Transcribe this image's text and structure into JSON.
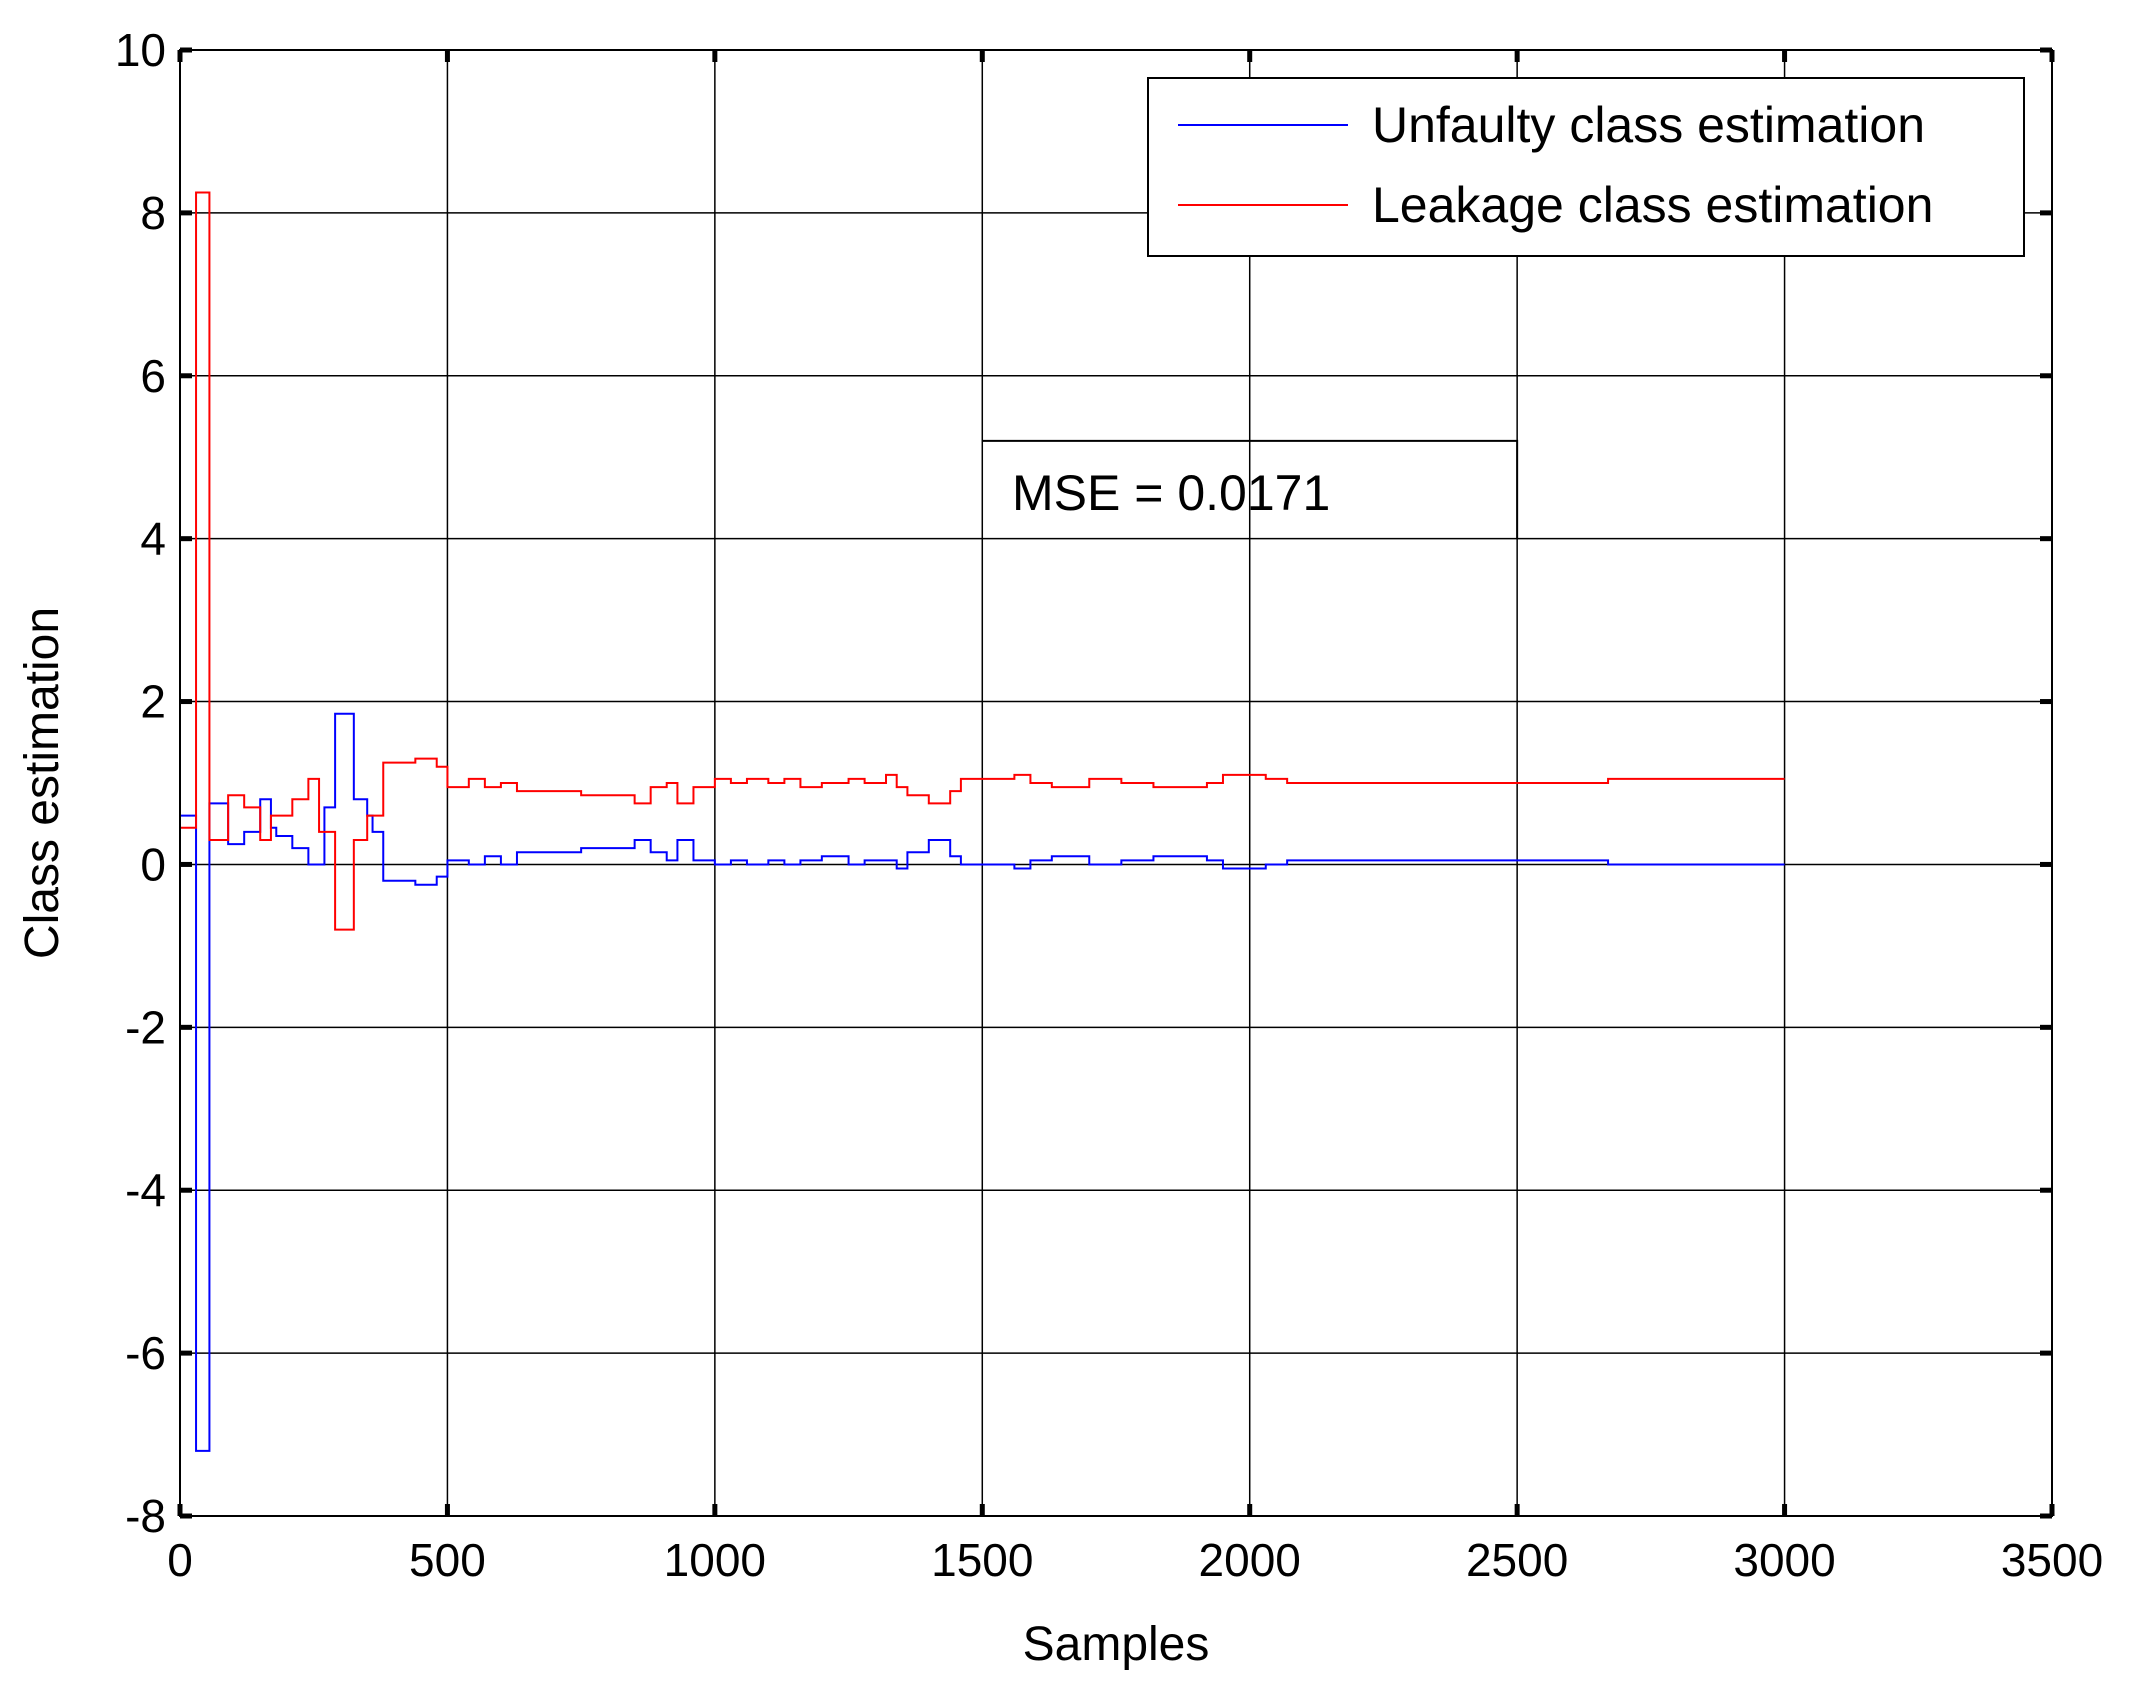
{
  "chart_data": {
    "type": "line",
    "xlabel": "Samples",
    "ylabel": "Class estimation",
    "xlim": [
      0,
      3500
    ],
    "ylim": [
      -8,
      10
    ],
    "xticks": [
      0,
      500,
      1000,
      1500,
      2000,
      2500,
      3000,
      3500
    ],
    "yticks": [
      -8,
      -6,
      -4,
      -2,
      0,
      2,
      4,
      6,
      8,
      10
    ],
    "grid": true,
    "legend_position": "top-right",
    "annotation": "MSE = 0.0171",
    "series": [
      {
        "name": "Unfaulty class estimation",
        "color": "#0000ff",
        "step": true,
        "points": [
          [
            0,
            0.6
          ],
          [
            30,
            0.6
          ],
          [
            30,
            -7.2
          ],
          [
            55,
            -7.2
          ],
          [
            55,
            0.75
          ],
          [
            90,
            0.75
          ],
          [
            90,
            0.25
          ],
          [
            120,
            0.25
          ],
          [
            120,
            0.4
          ],
          [
            150,
            0.4
          ],
          [
            150,
            0.8
          ],
          [
            170,
            0.8
          ],
          [
            170,
            0.45
          ],
          [
            180,
            0.45
          ],
          [
            180,
            0.35
          ],
          [
            210,
            0.35
          ],
          [
            210,
            0.2
          ],
          [
            240,
            0.2
          ],
          [
            240,
            0.0
          ],
          [
            270,
            0.0
          ],
          [
            270,
            0.7
          ],
          [
            290,
            0.7
          ],
          [
            290,
            1.85
          ],
          [
            325,
            1.85
          ],
          [
            325,
            0.8
          ],
          [
            350,
            0.8
          ],
          [
            350,
            0.6
          ],
          [
            360,
            0.6
          ],
          [
            360,
            0.4
          ],
          [
            380,
            0.4
          ],
          [
            380,
            -0.2
          ],
          [
            440,
            -0.2
          ],
          [
            440,
            -0.25
          ],
          [
            480,
            -0.25
          ],
          [
            480,
            -0.15
          ],
          [
            500,
            -0.15
          ],
          [
            500,
            0.05
          ],
          [
            540,
            0.05
          ],
          [
            540,
            0.0
          ],
          [
            570,
            0.0
          ],
          [
            570,
            0.1
          ],
          [
            600,
            0.1
          ],
          [
            600,
            0.0
          ],
          [
            630,
            0.0
          ],
          [
            630,
            0.15
          ],
          [
            750,
            0.15
          ],
          [
            750,
            0.2
          ],
          [
            850,
            0.2
          ],
          [
            850,
            0.3
          ],
          [
            880,
            0.3
          ],
          [
            880,
            0.15
          ],
          [
            910,
            0.15
          ],
          [
            910,
            0.05
          ],
          [
            930,
            0.05
          ],
          [
            930,
            0.3
          ],
          [
            960,
            0.3
          ],
          [
            960,
            0.05
          ],
          [
            1000,
            0.05
          ],
          [
            1000,
            0.0
          ],
          [
            1030,
            0.0
          ],
          [
            1030,
            0.05
          ],
          [
            1060,
            0.05
          ],
          [
            1060,
            0.0
          ],
          [
            1100,
            0.0
          ],
          [
            1100,
            0.05
          ],
          [
            1130,
            0.05
          ],
          [
            1130,
            0.0
          ],
          [
            1160,
            0.0
          ],
          [
            1160,
            0.05
          ],
          [
            1200,
            0.05
          ],
          [
            1200,
            0.1
          ],
          [
            1250,
            0.1
          ],
          [
            1250,
            0.0
          ],
          [
            1280,
            0.0
          ],
          [
            1280,
            0.05
          ],
          [
            1340,
            0.05
          ],
          [
            1340,
            -0.05
          ],
          [
            1360,
            -0.05
          ],
          [
            1360,
            0.15
          ],
          [
            1400,
            0.15
          ],
          [
            1400,
            0.3
          ],
          [
            1440,
            0.3
          ],
          [
            1440,
            0.1
          ],
          [
            1460,
            0.1
          ],
          [
            1460,
            0.0
          ],
          [
            1560,
            0.0
          ],
          [
            1560,
            -0.05
          ],
          [
            1590,
            -0.05
          ],
          [
            1590,
            0.05
          ],
          [
            1630,
            0.05
          ],
          [
            1630,
            0.1
          ],
          [
            1700,
            0.1
          ],
          [
            1700,
            0.0
          ],
          [
            1760,
            0.0
          ],
          [
            1760,
            0.05
          ],
          [
            1820,
            0.05
          ],
          [
            1820,
            0.1
          ],
          [
            1920,
            0.1
          ],
          [
            1920,
            0.05
          ],
          [
            1950,
            0.05
          ],
          [
            1950,
            -0.05
          ],
          [
            2030,
            -0.05
          ],
          [
            2030,
            0.0
          ],
          [
            2070,
            0.0
          ],
          [
            2070,
            0.05
          ],
          [
            2670,
            0.05
          ],
          [
            2670,
            0.0
          ],
          [
            3000,
            0.0
          ]
        ]
      },
      {
        "name": "Leakage class estimation",
        "color": "#ff0000",
        "step": true,
        "points": [
          [
            0,
            0.45
          ],
          [
            30,
            0.45
          ],
          [
            30,
            8.25
          ],
          [
            55,
            8.25
          ],
          [
            55,
            0.3
          ],
          [
            90,
            0.3
          ],
          [
            90,
            0.85
          ],
          [
            120,
            0.85
          ],
          [
            120,
            0.7
          ],
          [
            150,
            0.7
          ],
          [
            150,
            0.3
          ],
          [
            170,
            0.3
          ],
          [
            170,
            0.6
          ],
          [
            210,
            0.6
          ],
          [
            210,
            0.8
          ],
          [
            240,
            0.8
          ],
          [
            240,
            1.05
          ],
          [
            260,
            1.05
          ],
          [
            260,
            0.4
          ],
          [
            290,
            0.4
          ],
          [
            290,
            -0.8
          ],
          [
            325,
            -0.8
          ],
          [
            325,
            0.3
          ],
          [
            350,
            0.3
          ],
          [
            350,
            0.6
          ],
          [
            380,
            0.6
          ],
          [
            380,
            1.25
          ],
          [
            440,
            1.25
          ],
          [
            440,
            1.3
          ],
          [
            480,
            1.3
          ],
          [
            480,
            1.2
          ],
          [
            500,
            1.2
          ],
          [
            500,
            0.95
          ],
          [
            540,
            0.95
          ],
          [
            540,
            1.05
          ],
          [
            570,
            1.05
          ],
          [
            570,
            0.95
          ],
          [
            600,
            0.95
          ],
          [
            600,
            1.0
          ],
          [
            630,
            1.0
          ],
          [
            630,
            0.9
          ],
          [
            750,
            0.9
          ],
          [
            750,
            0.85
          ],
          [
            850,
            0.85
          ],
          [
            850,
            0.75
          ],
          [
            880,
            0.75
          ],
          [
            880,
            0.95
          ],
          [
            910,
            0.95
          ],
          [
            910,
            1.0
          ],
          [
            930,
            1.0
          ],
          [
            930,
            0.75
          ],
          [
            960,
            0.75
          ],
          [
            960,
            0.95
          ],
          [
            1000,
            0.95
          ],
          [
            1000,
            1.05
          ],
          [
            1030,
            1.05
          ],
          [
            1030,
            1.0
          ],
          [
            1060,
            1.0
          ],
          [
            1060,
            1.05
          ],
          [
            1100,
            1.05
          ],
          [
            1100,
            1.0
          ],
          [
            1130,
            1.0
          ],
          [
            1130,
            1.05
          ],
          [
            1160,
            1.05
          ],
          [
            1160,
            0.95
          ],
          [
            1200,
            0.95
          ],
          [
            1200,
            1.0
          ],
          [
            1250,
            1.0
          ],
          [
            1250,
            1.05
          ],
          [
            1280,
            1.05
          ],
          [
            1280,
            1.0
          ],
          [
            1320,
            1.0
          ],
          [
            1320,
            1.1
          ],
          [
            1340,
            1.1
          ],
          [
            1340,
            0.95
          ],
          [
            1360,
            0.95
          ],
          [
            1360,
            0.85
          ],
          [
            1400,
            0.85
          ],
          [
            1400,
            0.75
          ],
          [
            1440,
            0.75
          ],
          [
            1440,
            0.9
          ],
          [
            1460,
            0.9
          ],
          [
            1460,
            1.05
          ],
          [
            1560,
            1.05
          ],
          [
            1560,
            1.1
          ],
          [
            1590,
            1.1
          ],
          [
            1590,
            1.0
          ],
          [
            1630,
            1.0
          ],
          [
            1630,
            0.95
          ],
          [
            1700,
            0.95
          ],
          [
            1700,
            1.05
          ],
          [
            1760,
            1.05
          ],
          [
            1760,
            1.0
          ],
          [
            1820,
            1.0
          ],
          [
            1820,
            0.95
          ],
          [
            1920,
            0.95
          ],
          [
            1920,
            1.0
          ],
          [
            1950,
            1.0
          ],
          [
            1950,
            1.1
          ],
          [
            2030,
            1.1
          ],
          [
            2030,
            1.05
          ],
          [
            2070,
            1.05
          ],
          [
            2070,
            1.0
          ],
          [
            2670,
            1.0
          ],
          [
            2670,
            1.05
          ],
          [
            3000,
            1.05
          ]
        ]
      }
    ]
  }
}
